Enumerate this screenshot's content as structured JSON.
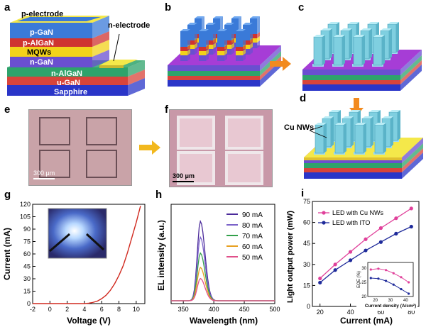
{
  "panels": {
    "a": {
      "label": "a",
      "layers": [
        "p-electrode",
        "p-GaN",
        "p-AlGaN",
        "MQWs",
        "n-GaN",
        "n-AlGaN",
        "u-GaN",
        "Sapphire"
      ],
      "n_electrode_label": "n-electrode"
    },
    "b": {
      "label": "b"
    },
    "c": {
      "label": "c"
    },
    "d": {
      "label": "d",
      "annotation": "Cu NWs"
    },
    "e": {
      "label": "e",
      "scalebar": "300 μm"
    },
    "f": {
      "label": "f",
      "scalebar": "300 μm"
    },
    "g": {
      "label": "g"
    },
    "h": {
      "label": "h"
    },
    "i": {
      "label": "i"
    }
  },
  "colors": {
    "sapphire": "#2a35c8",
    "u_gan": "#d8443a",
    "n_algan": "#2ea36b",
    "n_gan": "#6a4fd0",
    "mqw": "#f2d21a",
    "p_algan": "#cf3330",
    "p_gan": "#3a7ad8",
    "electrode": "#f4e84a",
    "platform_top": "#a63dd6",
    "nanowire": "#7fcfe0",
    "arrow": "#f28a1e",
    "micro_bg": "#c8a0a6"
  },
  "chart_data": [
    {
      "type": "line",
      "panel": "g",
      "xlabel": "Voltage (V)",
      "ylabel": "Current (mA)",
      "xlim": [
        -2,
        11
      ],
      "ylim": [
        0,
        120
      ],
      "xticks": [
        -2,
        0,
        2,
        4,
        6,
        8,
        10
      ],
      "yticks": [
        0,
        15,
        30,
        45,
        60,
        75,
        90,
        105,
        120
      ],
      "series": [
        {
          "color": "#d0281e",
          "x": [
            -2,
            0,
            2,
            4,
            4.5,
            5,
            5.5,
            6,
            6.5,
            7,
            7.5,
            8,
            8.5,
            9,
            9.5,
            10,
            10.5
          ],
          "y": [
            0,
            0,
            0,
            0,
            0.5,
            1.5,
            3,
            6,
            10,
            16,
            24,
            34,
            46,
            62,
            80,
            98,
            118
          ]
        }
      ]
    },
    {
      "type": "line",
      "panel": "h",
      "xlabel": "Wavelength (nm)",
      "ylabel": "EL intensity (a.u.)",
      "xlim": [
        330,
        500
      ],
      "xticks": [
        350,
        400,
        450,
        500
      ],
      "peak_nm": 378,
      "series": [
        {
          "name": "90 mA",
          "color": "#4b2a9a",
          "peak": 1.0
        },
        {
          "name": "80 mA",
          "color": "#7b63c9",
          "peak": 0.8
        },
        {
          "name": "70 mA",
          "color": "#32a04a",
          "peak": 0.6
        },
        {
          "name": "60 mA",
          "color": "#e8a020",
          "peak": 0.42
        },
        {
          "name": "50 mA",
          "color": "#e0508a",
          "peak": 0.28
        }
      ]
    },
    {
      "type": "line",
      "panel": "i",
      "xlabel": "Current (mA)",
      "ylabel": "Light output power (mW)",
      "xlim": [
        15,
        85
      ],
      "ylim": [
        0,
        75
      ],
      "xticks": [
        20,
        40,
        60,
        80
      ],
      "yticks": [
        0,
        15,
        30,
        45,
        60,
        75
      ],
      "x": [
        20,
        30,
        40,
        50,
        60,
        70,
        80
      ],
      "series": [
        {
          "name": "LED with Cu NWs",
          "color": "#e0409a",
          "values": [
            20,
            30,
            39,
            48,
            56,
            63,
            70
          ]
        },
        {
          "name": "LED with ITO",
          "color": "#1e2a9a",
          "values": [
            17,
            26,
            33,
            40,
            46,
            52,
            57
          ]
        }
      ],
      "inset": {
        "xlabel": "Current density (A/cm²)",
        "ylabel": "EQE (%)",
        "xticks": [
          20,
          30,
          40
        ],
        "yticks": [
          20,
          25,
          30
        ],
        "x": [
          17,
          22,
          27,
          32,
          37,
          42
        ],
        "series": [
          {
            "name": "LED with Cu NWs",
            "color": "#e0409a",
            "values": [
              29.5,
              29.8,
              29.3,
              28.2,
              26.8,
              25.0
            ]
          },
          {
            "name": "LED with ITO",
            "color": "#1e2a9a",
            "values": [
              26.5,
              26.3,
              25.5,
              24.2,
              22.6,
              21.0
            ]
          }
        ]
      }
    }
  ]
}
